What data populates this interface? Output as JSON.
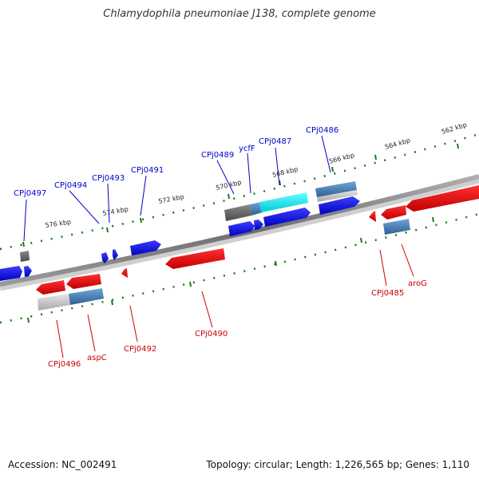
{
  "title": "Chlamydophila pneumoniae J138, complete genome",
  "accession": "Accession: NC_002491",
  "summary": "Topology: circular; Length: 1,226,565 bp; Genes: 1,110",
  "colors": {
    "forward_gene": "#0000ee",
    "reverse_gene": "#ee0000",
    "unknown_gene": "#666666",
    "highlight_gene": "#00e5ee",
    "steel_gene": "#4682b4",
    "backbone": "#7a7a7a",
    "tick": "#1a7a1a",
    "label_top": "#0000cc",
    "label_bottom": "#cc0000"
  },
  "scale_labels": [
    "576 kbp",
    "574 kbp",
    "572 kbp",
    "570 kbp",
    "568 kbp",
    "566 kbp",
    "564 kbp",
    "562 kbp"
  ],
  "top_gene_labels": [
    "CPj0497",
    "CPj0494",
    "CPj0493",
    "CPj0491",
    "CPj0489",
    "ycfF",
    "CPj0487",
    "CPj0486"
  ],
  "bottom_gene_labels": [
    "CPj0496",
    "aspC",
    "CPj0492",
    "CPj0490",
    "CPj0485",
    "aroG"
  ]
}
